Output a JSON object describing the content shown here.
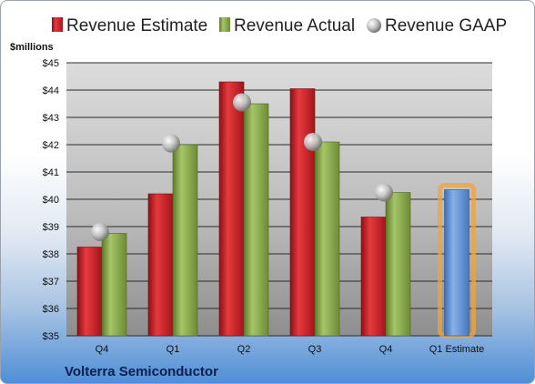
{
  "chart_data": {
    "type": "bar",
    "unit_label": "$millions",
    "company": "Volterra Semiconductor",
    "categories": [
      "Q4",
      "Q1",
      "Q2",
      "Q3",
      "Q4",
      "Q1 Estimate"
    ],
    "ylim": [
      35,
      45
    ],
    "y_ticks": [
      "$35",
      "$36",
      "$37",
      "$38",
      "$39",
      "$40",
      "$41",
      "$42",
      "$43",
      "$44",
      "$45"
    ],
    "grid": true,
    "legend_position": "top",
    "series": [
      {
        "name": "Revenue Estimate",
        "kind": "bar",
        "color": "#c81e24",
        "values": [
          38.25,
          40.2,
          44.3,
          44.05,
          39.35,
          null
        ]
      },
      {
        "name": "Revenue Actual",
        "kind": "bar",
        "color": "#8aa84a",
        "values": [
          38.75,
          42.0,
          43.5,
          42.1,
          40.25,
          null
        ]
      },
      {
        "name": "Revenue GAAP",
        "kind": "marker",
        "color": "#b0b0b0",
        "values": [
          38.8,
          42.05,
          43.55,
          42.1,
          40.25,
          null
        ]
      },
      {
        "name": "",
        "kind": "bar",
        "color": "#5b8fd4",
        "highlight": true,
        "values": [
          null,
          null,
          null,
          null,
          null,
          40.35
        ]
      }
    ]
  }
}
